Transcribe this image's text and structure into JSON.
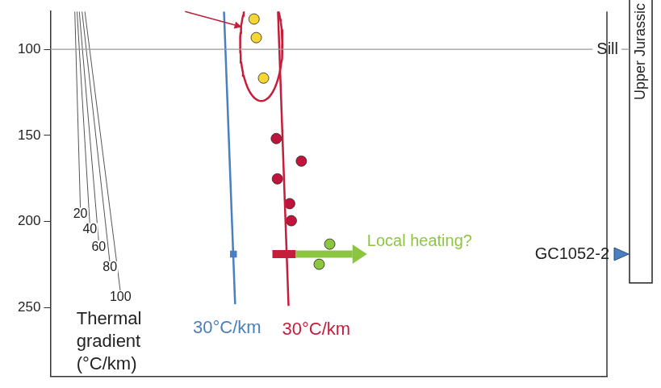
{
  "chart_data": {
    "type": "scatter",
    "xlim": [
      0,
      100
    ],
    "ylim": [
      78,
      290
    ],
    "yticks": [
      100,
      150,
      200,
      250
    ],
    "tick_labels": "y",
    "grid": false,
    "thermal_gradient": {
      "title": [
        "Thermal",
        "gradient",
        "(°C/km)"
      ],
      "color": "#555555",
      "lines": [
        {
          "label": "20",
          "x": [
            4.4,
            5.4
          ],
          "y": [
            78,
            192.8
          ]
        },
        {
          "label": "40",
          "x": [
            4.8,
            7.1
          ],
          "y": [
            78,
            201.8
          ]
        },
        {
          "label": "60",
          "x": [
            5.2,
            8.7
          ],
          "y": [
            78,
            212
          ]
        },
        {
          "label": "80",
          "x": [
            5.7,
            10.7
          ],
          "y": [
            78,
            224
          ]
        },
        {
          "label": "100",
          "x": [
            6.2,
            12.6
          ],
          "y": [
            78,
            241
          ]
        }
      ]
    },
    "gradient_lines": [
      {
        "label": "30°C/km",
        "color": "#4a7fc1",
        "x": [
          31.2,
          33.2
        ],
        "y": [
          78,
          248
        ]
      },
      {
        "label": "30°C/km",
        "color": "#c41e3a",
        "x": [
          40.9,
          42.8
        ],
        "y": [
          78,
          249
        ]
      }
    ],
    "series": [
      {
        "color": "#f6d731",
        "marker": "circle",
        "x": [
          36.6,
          37.0,
          38.3
        ],
        "y": [
          82.4,
          93.2,
          116.7
        ]
      },
      {
        "color": "#c0143c",
        "marker": "circle",
        "x": [
          40.6,
          45.1,
          40.8,
          43.0,
          43.3
        ],
        "y": [
          151.8,
          164.9,
          175.2,
          189.6,
          199.5
        ]
      },
      {
        "color": "#8cc63e",
        "marker": "circle",
        "x": [
          50.2,
          48.3
        ],
        "y": [
          213.1,
          224.8
        ]
      },
      {
        "color": "#4a7fc1",
        "marker": "square",
        "x": [
          32.9
        ],
        "y": [
          218.9
        ]
      }
    ],
    "ranges": [
      {
        "color": "#c41e3a",
        "x": [
          39.9,
          44.1
        ],
        "y": 218.9
      }
    ],
    "arrows": [
      {
        "label": "Local heating?",
        "color": "#8cc63e",
        "x": [
          44.1,
          56.9
        ],
        "y": [
          218.9,
          218.9
        ]
      },
      {
        "color": "#c41e3a",
        "x": [
          24.2,
          34.4
        ],
        "y": [
          78,
          87
        ]
      }
    ],
    "ellipse": {
      "color": "#c41e3a",
      "cx": 37.9,
      "cy": 97,
      "rx": 3.8,
      "ry": 33
    },
    "horizons": [
      {
        "label": "Sill",
        "y": 100,
        "color": "#9a9a9a"
      }
    ],
    "well_sample": {
      "label": "GC1052-2",
      "y": 218.9,
      "color": "#4a7fc1"
    },
    "unit_bar": {
      "label": "Upper Jurassic",
      "base": 235.6
    }
  }
}
